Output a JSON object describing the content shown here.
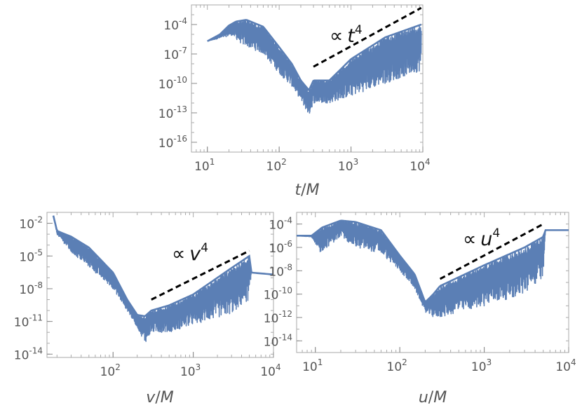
{
  "chart_data": [
    {
      "type": "line",
      "scale": {
        "x": "log",
        "y": "log"
      },
      "xlabel": {
        "var": "t",
        "unit": "M"
      },
      "xlim": [
        6,
        10000
      ],
      "ylim": [
        1e-17,
        0.01
      ],
      "xticks": [
        {
          "base": "10",
          "exp": "1"
        },
        {
          "base": "10",
          "exp": "2"
        },
        {
          "base": "10",
          "exp": "3"
        },
        {
          "base": "10",
          "exp": "4"
        }
      ],
      "yticks": [
        {
          "base": "10",
          "exp": "-4"
        },
        {
          "base": "10",
          "exp": "-7"
        },
        {
          "base": "10",
          "exp": "-10"
        },
        {
          "base": "10",
          "exp": "-13"
        },
        {
          "base": "10",
          "exp": "-16"
        }
      ],
      "annotation": {
        "symbol": "∝",
        "var": "t",
        "exp": "4"
      },
      "series_color": "#5b7fb5",
      "fit_line": {
        "x": [
          300,
          9500
        ],
        "y": [
          5e-09,
          0.005
        ],
        "style": "dashed",
        "color": "#000000"
      },
      "envelope": [
        [
          10,
          2e-06
        ],
        [
          15,
          1e-05
        ],
        [
          20,
          8e-05
        ],
        [
          25,
          0.0002
        ],
        [
          35,
          0.0003
        ],
        [
          60,
          6e-05
        ],
        [
          100,
          5e-07
        ],
        [
          150,
          1e-08
        ],
        [
          200,
          2e-10
        ],
        [
          260,
          2e-11
        ],
        [
          300,
          2e-10
        ],
        [
          500,
          2e-10
        ],
        [
          1000,
          3e-08
        ],
        [
          3000,
          5e-06
        ],
        [
          9500,
          0.0001
        ]
      ],
      "floor": [
        [
          10,
          2e-06
        ],
        [
          22,
          8e-06
        ],
        [
          30,
          1e-06
        ],
        [
          60,
          1e-07
        ],
        [
          100,
          1e-09
        ],
        [
          150,
          5e-11
        ],
        [
          200,
          2e-12
        ],
        [
          260,
          5e-14
        ],
        [
          300,
          1e-12
        ],
        [
          500,
          1e-12
        ],
        [
          1000,
          5e-12
        ],
        [
          3000,
          1e-10
        ],
        [
          9500,
          2e-09
        ]
      ]
    },
    {
      "type": "line",
      "scale": {
        "x": "log",
        "y": "log"
      },
      "xlabel": {
        "var": "v",
        "unit": "M"
      },
      "xlim": [
        15,
        10000
      ],
      "ylim": [
        5e-15,
        0.1
      ],
      "xticks": [
        {
          "base": "10",
          "exp": "2"
        },
        {
          "base": "10",
          "exp": "3"
        },
        {
          "base": "10",
          "exp": "4"
        }
      ],
      "yticks": [
        {
          "base": "10",
          "exp": "-2"
        },
        {
          "base": "10",
          "exp": "-5"
        },
        {
          "base": "10",
          "exp": "-8"
        },
        {
          "base": "10",
          "exp": "-11"
        },
        {
          "base": "10",
          "exp": "-14"
        }
      ],
      "annotation": {
        "symbol": "∝",
        "var": "v",
        "exp": "4"
      },
      "series_color": "#5b7fb5",
      "fit_line": {
        "x": [
          300,
          5000
        ],
        "y": [
          1e-09,
          3e-05
        ],
        "style": "dashed",
        "color": "#000000"
      },
      "envelope": [
        [
          18,
          0.05
        ],
        [
          20,
          0.002
        ],
        [
          30,
          0.0006
        ],
        [
          50,
          6e-05
        ],
        [
          100,
          3e-07
        ],
        [
          150,
          1e-09
        ],
        [
          200,
          4e-11
        ],
        [
          250,
          3e-11
        ],
        [
          300,
          1e-10
        ],
        [
          500,
          3e-10
        ],
        [
          1000,
          3e-09
        ],
        [
          3000,
          8e-07
        ],
        [
          5000,
          1e-05
        ],
        [
          5300,
          3e-07
        ],
        [
          10000,
          2e-07
        ]
      ],
      "floor": [
        [
          18,
          0.05
        ],
        [
          20,
          0.001
        ],
        [
          30,
          2e-05
        ],
        [
          50,
          1e-06
        ],
        [
          100,
          1e-08
        ],
        [
          150,
          1e-10
        ],
        [
          200,
          3e-12
        ],
        [
          250,
          1e-13
        ],
        [
          300,
          1e-12
        ],
        [
          500,
          1e-12
        ],
        [
          1000,
          5e-12
        ],
        [
          3000,
          5e-11
        ],
        [
          5000,
          1e-09
        ],
        [
          5300,
          3e-07
        ],
        [
          10000,
          2e-07
        ]
      ]
    },
    {
      "type": "line",
      "scale": {
        "x": "log",
        "y": "log"
      },
      "xlabel": {
        "var": "u",
        "unit": "M"
      },
      "xlim": [
        6,
        10000
      ],
      "ylim": [
        1e-15,
        0.001
      ],
      "xticks": [
        {
          "base": "10",
          "exp": "1"
        },
        {
          "base": "10",
          "exp": "2"
        },
        {
          "base": "10",
          "exp": "3"
        },
        {
          "base": "10",
          "exp": "4"
        }
      ],
      "yticks": [
        {
          "base": "10",
          "exp": "-4"
        },
        {
          "base": "10",
          "exp": "-6"
        },
        {
          "base": "10",
          "exp": "-8"
        },
        {
          "base": "10",
          "exp": "-10"
        },
        {
          "base": "10",
          "exp": "-12"
        },
        {
          "base": "10",
          "exp": "-14"
        }
      ],
      "annotation": {
        "symbol": "∝",
        "var": "u",
        "exp": "4"
      },
      "series_color": "#5b7fb5",
      "fit_line": {
        "x": [
          300,
          5000
        ],
        "y": [
          2e-09,
          0.0001
        ],
        "style": "dashed",
        "color": "#000000"
      },
      "envelope": [
        [
          6,
          1e-05
        ],
        [
          9,
          1e-05
        ],
        [
          12,
          5e-05
        ],
        [
          20,
          0.0002
        ],
        [
          30,
          0.00015
        ],
        [
          60,
          3e-05
        ],
        [
          100,
          2e-07
        ],
        [
          150,
          5e-09
        ],
        [
          200,
          2e-11
        ],
        [
          250,
          1e-10
        ],
        [
          300,
          5e-10
        ],
        [
          1000,
          3e-08
        ],
        [
          3000,
          1e-06
        ],
        [
          5000,
          8e-06
        ],
        [
          5300,
          3e-05
        ],
        [
          10000,
          3e-05
        ]
      ],
      "floor": [
        [
          6,
          1e-05
        ],
        [
          9,
          8e-06
        ],
        [
          11,
          3e-07
        ],
        [
          20,
          8e-06
        ],
        [
          30,
          1e-06
        ],
        [
          60,
          3e-07
        ],
        [
          100,
          1e-08
        ],
        [
          150,
          3e-10
        ],
        [
          200,
          3e-12
        ],
        [
          250,
          1e-12
        ],
        [
          300,
          1e-12
        ],
        [
          1000,
          1e-11
        ],
        [
          3000,
          1e-10
        ],
        [
          5000,
          3e-09
        ],
        [
          5300,
          3e-05
        ],
        [
          10000,
          3e-05
        ]
      ]
    }
  ]
}
